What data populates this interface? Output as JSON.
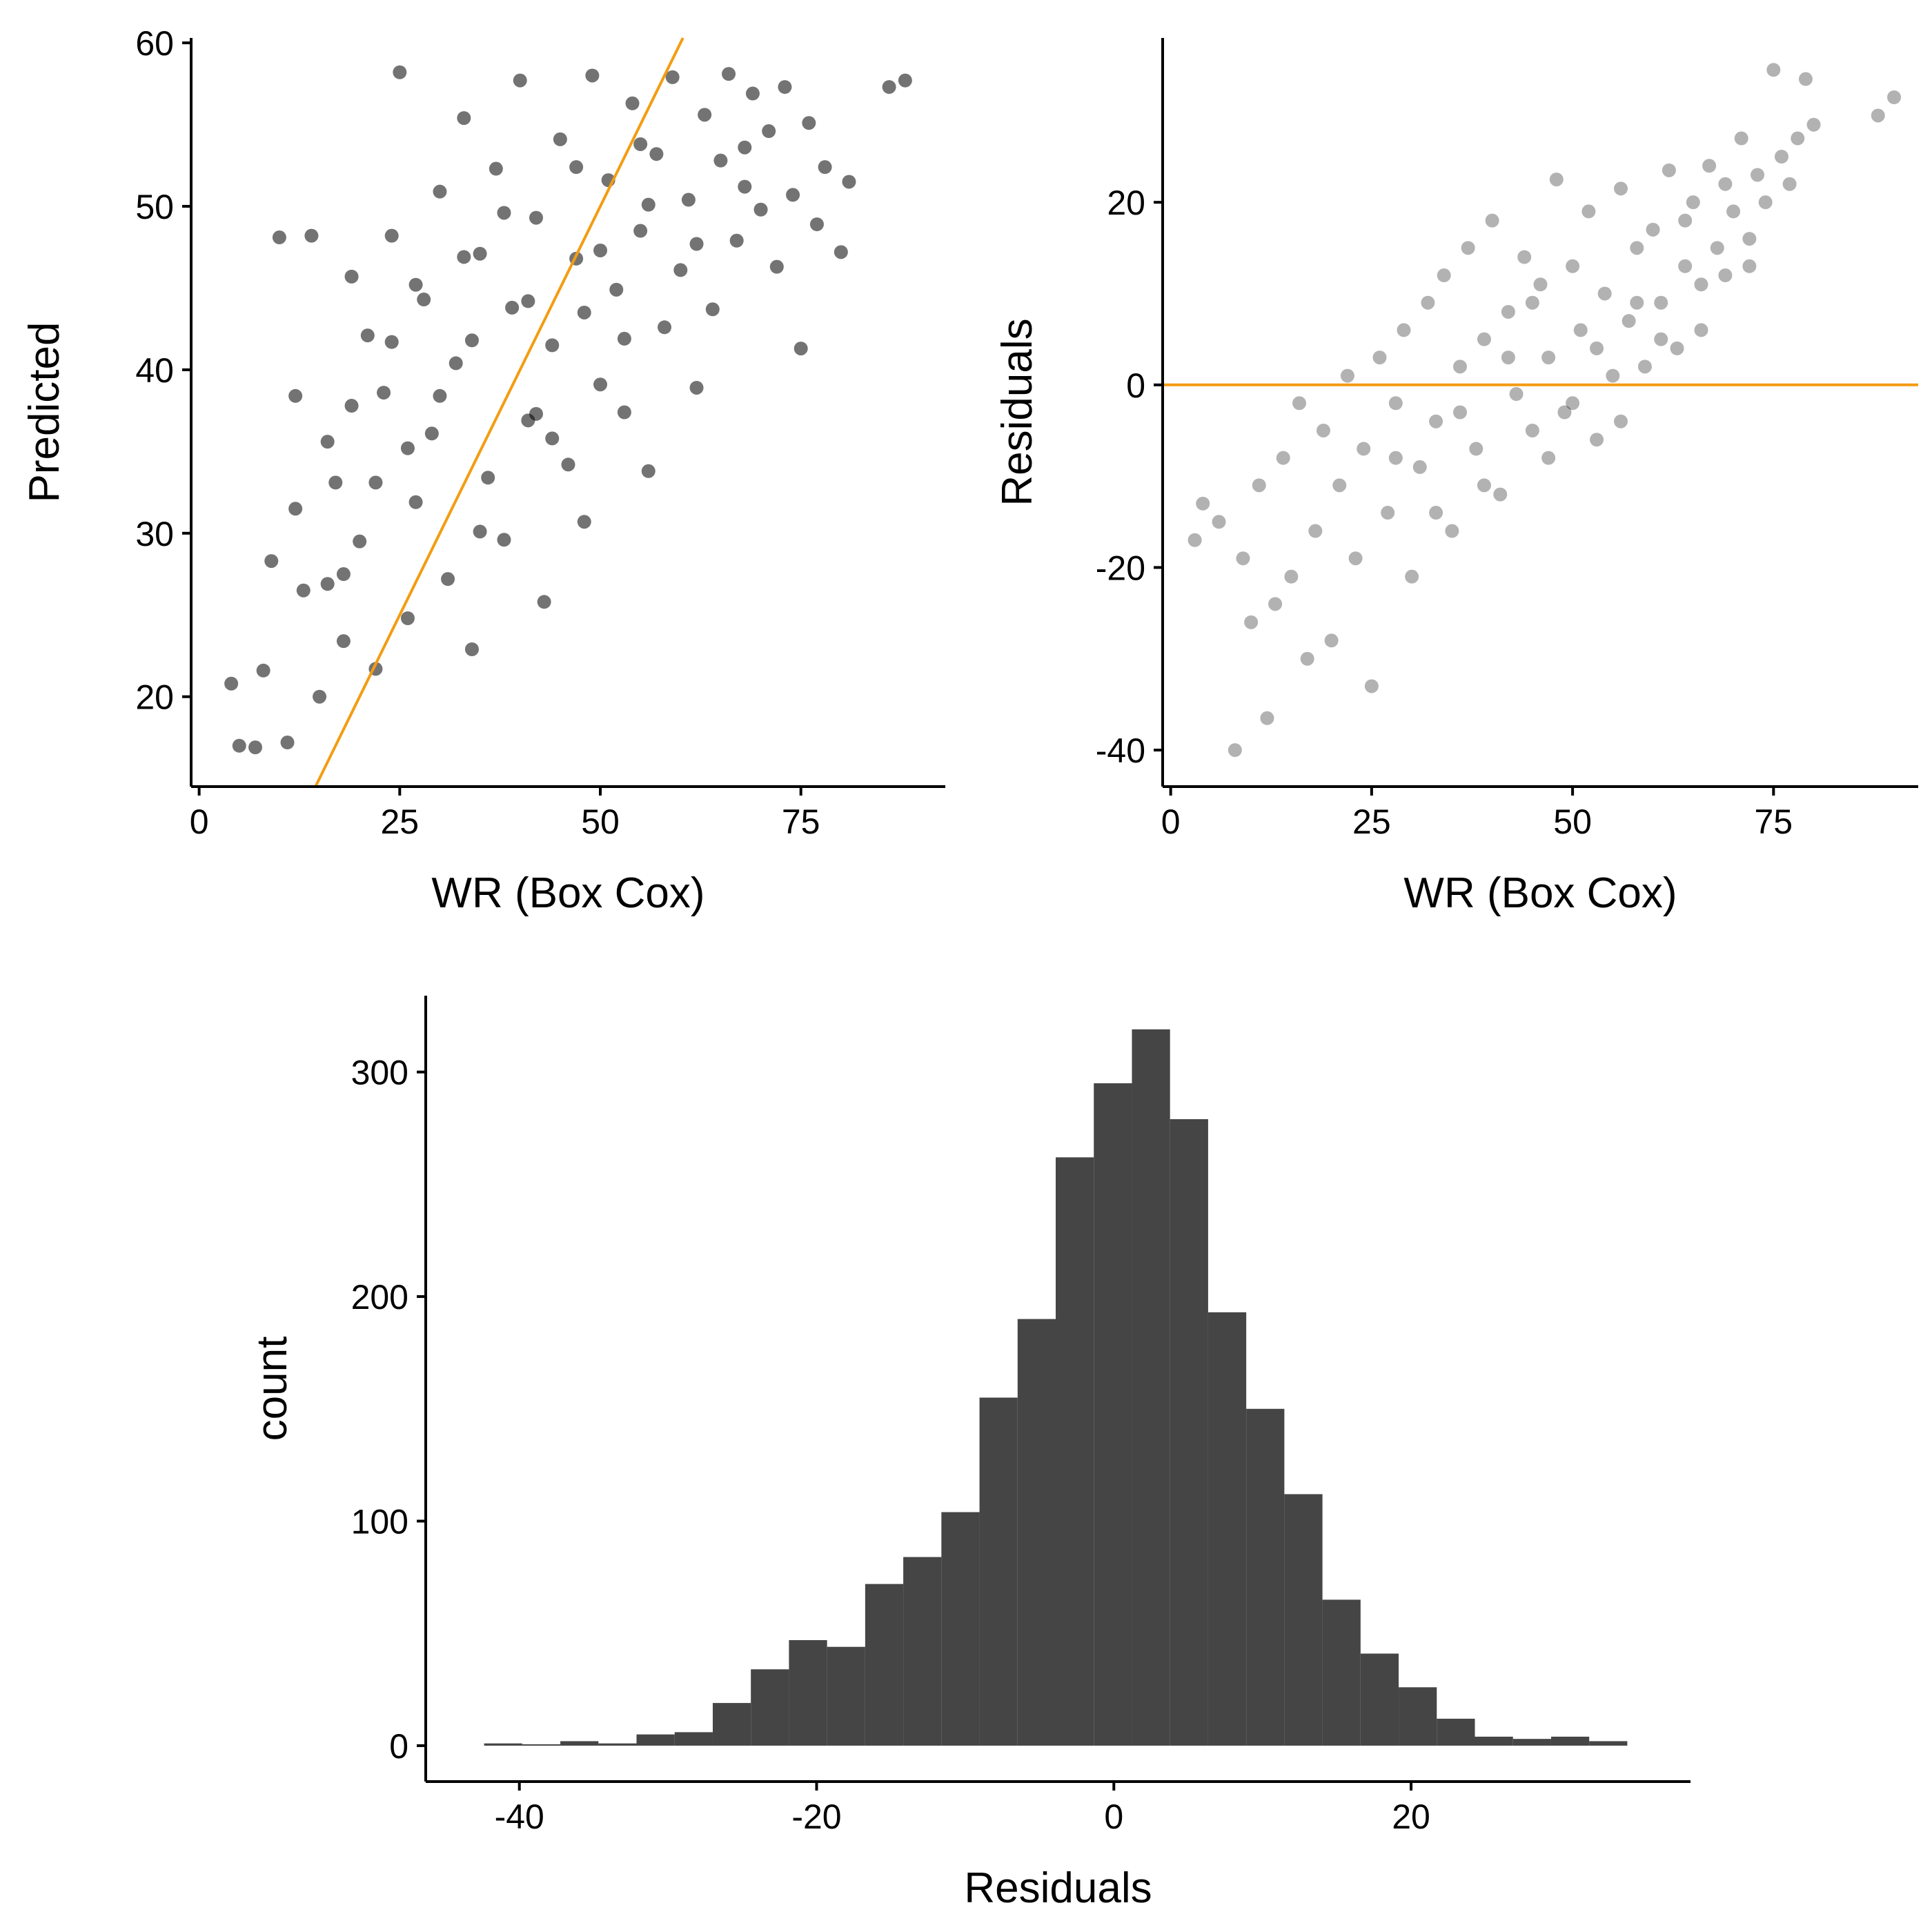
{
  "colors": {
    "points": "#000000",
    "reference_line": "#F39C12",
    "bars": "#454545",
    "axis": "#000000",
    "background": "#ffffff"
  },
  "chart_data": [
    {
      "id": "predicted-vs-observed",
      "type": "scatter",
      "title": "",
      "xlabel": "WR (Box Cox)",
      "ylabel": "Predicted",
      "xlim": [
        -1,
        93
      ],
      "ylim": [
        14.5,
        60.3
      ],
      "xticks": [
        "0",
        "25",
        "50",
        "75"
      ],
      "yticks": [
        "20",
        "30",
        "40",
        "50",
        "60"
      ],
      "point_opacity": 0.55,
      "reference_line": {
        "kind": "identity",
        "from": [
          14.5,
          14.5
        ],
        "to": [
          60.3,
          60.3
        ]
      },
      "series": [
        {
          "values": [
            [
              4,
              20.8
            ],
            [
              5,
              17
            ],
            [
              7,
              16.9
            ],
            [
              8,
              21.6
            ],
            [
              9,
              28.3
            ],
            [
              10,
              48.1
            ],
            [
              11,
              17.2
            ],
            [
              12,
              38.4
            ],
            [
              13,
              26.5
            ],
            [
              14,
              48.2
            ],
            [
              15,
              20
            ],
            [
              16,
              35.6
            ],
            [
              17,
              33.1
            ],
            [
              18,
              23.4
            ],
            [
              19,
              45.7
            ],
            [
              20,
              29.5
            ],
            [
              21,
              42.1
            ],
            [
              22,
              21.7
            ],
            [
              23,
              38.6
            ],
            [
              24,
              48.2
            ],
            [
              25,
              58.2
            ],
            [
              26,
              24.8
            ],
            [
              27,
              31.9
            ],
            [
              28,
              44.3
            ],
            [
              29,
              36.1
            ],
            [
              30,
              50.9
            ],
            [
              31,
              27.2
            ],
            [
              32,
              40.4
            ],
            [
              33,
              55.4
            ],
            [
              34,
              22.9
            ],
            [
              35,
              47.1
            ],
            [
              36,
              33.4
            ],
            [
              37,
              52.3
            ],
            [
              38,
              29.6
            ],
            [
              39,
              43.8
            ],
            [
              40,
              57.7
            ],
            [
              41,
              36.9
            ],
            [
              42,
              49.3
            ],
            [
              43,
              25.8
            ],
            [
              44,
              41.5
            ],
            [
              45,
              54.1
            ],
            [
              46,
              34.2
            ],
            [
              47,
              46.8
            ],
            [
              48,
              30.7
            ],
            [
              49,
              58
            ],
            [
              50,
              39.1
            ],
            [
              51,
              51.6
            ],
            [
              52,
              44.9
            ],
            [
              53,
              37.4
            ],
            [
              54,
              56.3
            ],
            [
              55,
              48.5
            ],
            [
              56,
              33.8
            ],
            [
              57,
              53.2
            ],
            [
              58,
              42.6
            ],
            [
              59,
              57.9
            ],
            [
              60,
              46.1
            ],
            [
              61,
              50.4
            ],
            [
              62,
              38.9
            ],
            [
              63,
              55.6
            ],
            [
              64,
              43.7
            ],
            [
              65,
              52.8
            ],
            [
              66,
              58.1
            ],
            [
              67,
              47.9
            ],
            [
              68,
              51.2
            ],
            [
              69,
              56.9
            ],
            [
              70,
              49.8
            ],
            [
              71,
              54.6
            ],
            [
              72,
              46.3
            ],
            [
              73,
              57.3
            ],
            [
              74,
              50.7
            ],
            [
              75,
              41.3
            ],
            [
              76,
              55.1
            ],
            [
              77,
              48.9
            ],
            [
              78,
              52.4
            ],
            [
              80,
              47.2
            ],
            [
              81,
              51.5
            ],
            [
              86,
              57.3
            ],
            [
              88,
              57.7
            ],
            [
              12,
              31.5
            ],
            [
              16,
              26.9
            ],
            [
              19,
              37.8
            ],
            [
              22,
              33.1
            ],
            [
              24,
              41.7
            ],
            [
              27,
              45.2
            ],
            [
              30,
              38.4
            ],
            [
              33,
              46.9
            ],
            [
              35,
              30.1
            ],
            [
              38,
              49.6
            ],
            [
              41,
              44.2
            ],
            [
              44,
              35.8
            ],
            [
              47,
              52.4
            ],
            [
              50,
              47.3
            ],
            [
              53,
              41.9
            ],
            [
              56,
              50.1
            ],
            [
              18,
              27.5
            ],
            [
              26,
              35.2
            ],
            [
              34,
              41.8
            ],
            [
              42,
              37.3
            ],
            [
              48,
              43.5
            ],
            [
              55,
              53.8
            ],
            [
              62,
              47.7
            ],
            [
              68,
              53.6
            ]
          ]
        }
      ]
    },
    {
      "id": "residuals-vs-observed",
      "type": "scatter",
      "title": "",
      "xlabel": "WR (Box Cox)",
      "ylabel": "Residuals",
      "xlim": [
        -1,
        93
      ],
      "ylim": [
        -44,
        38
      ],
      "xticks": [
        "0",
        "25",
        "50",
        "75"
      ],
      "yticks": [
        "-40",
        "-20",
        "0",
        "20"
      ],
      "point_opacity": 0.3,
      "reference_line": {
        "kind": "horizontal",
        "y": 0
      },
      "series": [
        {
          "values": [
            [
              3,
              -17
            ],
            [
              4,
              -13
            ],
            [
              6,
              -15
            ],
            [
              8,
              -40
            ],
            [
              9,
              -19
            ],
            [
              10,
              -26
            ],
            [
              11,
              -11
            ],
            [
              12,
              -36.5
            ],
            [
              13,
              -24
            ],
            [
              14,
              -8
            ],
            [
              15,
              -21
            ],
            [
              16,
              -2
            ],
            [
              17,
              -30
            ],
            [
              18,
              -16
            ],
            [
              19,
              -5
            ],
            [
              20,
              -28
            ],
            [
              21,
              -11
            ],
            [
              22,
              1
            ],
            [
              23,
              -19
            ],
            [
              24,
              -7
            ],
            [
              25,
              -33
            ],
            [
              26,
              3
            ],
            [
              27,
              -14
            ],
            [
              28,
              -2
            ],
            [
              29,
              6
            ],
            [
              30,
              -21
            ],
            [
              31,
              -9
            ],
            [
              32,
              9
            ],
            [
              33,
              -4
            ],
            [
              34,
              12
            ],
            [
              35,
              -16
            ],
            [
              36,
              2
            ],
            [
              37,
              15
            ],
            [
              38,
              -7
            ],
            [
              39,
              5
            ],
            [
              40,
              18
            ],
            [
              41,
              -12
            ],
            [
              42,
              8
            ],
            [
              43,
              -1
            ],
            [
              44,
              14
            ],
            [
              45,
              -5
            ],
            [
              46,
              11
            ],
            [
              47,
              3
            ],
            [
              48,
              22.5
            ],
            [
              49,
              -3
            ],
            [
              50,
              13
            ],
            [
              51,
              6
            ],
            [
              52,
              19
            ],
            [
              53,
              -6
            ],
            [
              54,
              10
            ],
            [
              55,
              1
            ],
            [
              56,
              21.5
            ],
            [
              57,
              7
            ],
            [
              58,
              15
            ],
            [
              59,
              2
            ],
            [
              60,
              17
            ],
            [
              61,
              9
            ],
            [
              62,
              23.5
            ],
            [
              63,
              4
            ],
            [
              64,
              13
            ],
            [
              65,
              20
            ],
            [
              66,
              11
            ],
            [
              67,
              24
            ],
            [
              68,
              15
            ],
            [
              69,
              12
            ],
            [
              70,
              19
            ],
            [
              71,
              27
            ],
            [
              72,
              16
            ],
            [
              73,
              23
            ],
            [
              74,
              20
            ],
            [
              75,
              34.5
            ],
            [
              76,
              25
            ],
            [
              77,
              22
            ],
            [
              78,
              27
            ],
            [
              79,
              33.5
            ],
            [
              80,
              28.5
            ],
            [
              88,
              29.5
            ],
            [
              90,
              31.5
            ],
            [
              28,
              -8
            ],
            [
              33,
              -14
            ],
            [
              36,
              -3
            ],
            [
              39,
              -11
            ],
            [
              42,
              3
            ],
            [
              45,
              9
            ],
            [
              47,
              -8
            ],
            [
              50,
              -2
            ],
            [
              53,
              4
            ],
            [
              56,
              -4
            ],
            [
              58,
              9
            ],
            [
              61,
              5
            ],
            [
              64,
              18
            ],
            [
              66,
              6
            ],
            [
              69,
              22
            ],
            [
              72,
              13
            ]
          ]
        }
      ]
    },
    {
      "id": "residual-histogram",
      "type": "bar",
      "title": "",
      "xlabel": "Residuals",
      "ylabel": "count",
      "xlim": [
        -46.3,
        38.8
      ],
      "ylim": [
        -16,
        334
      ],
      "xticks": [
        "-40",
        "-20",
        "0",
        "20"
      ],
      "yticks": [
        "0",
        "100",
        "200",
        "300"
      ],
      "bin_width": 2.564,
      "bin_start": -42.372,
      "counts": [
        1,
        0,
        2,
        1,
        5,
        6,
        19,
        34,
        47,
        44,
        72,
        84,
        104,
        155,
        190,
        262,
        295,
        319,
        279,
        193,
        150,
        112,
        65,
        41,
        26,
        12,
        4,
        3,
        4,
        2
      ]
    }
  ]
}
